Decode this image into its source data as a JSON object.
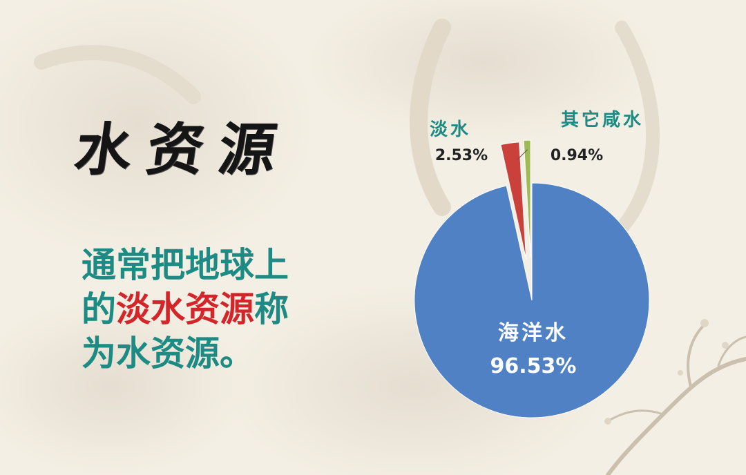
{
  "slide": {
    "title": "水资源",
    "description": {
      "line1": "通常把地球上",
      "line2_prefix": "的",
      "line2_highlight": "淡水资源",
      "line2_suffix": "称",
      "line3": "为水资源。"
    }
  },
  "colors": {
    "teal_text": "#1d8a84",
    "red_text": "#d2262a",
    "title_text": "#151515",
    "background": "#f4efe4"
  },
  "chart_data": {
    "type": "pie",
    "title": "",
    "slices": [
      {
        "name": "海洋水",
        "value": 96.53,
        "label": "96.53%",
        "color": "#4f81c4",
        "exploded": false
      },
      {
        "name": "淡水",
        "value": 2.53,
        "label": "2.53%",
        "color": "#c9413a",
        "exploded": true
      },
      {
        "name": "其它咸水",
        "value": 0.94,
        "label": "0.94%",
        "color": "#9fbb57",
        "exploded": true
      }
    ],
    "start_angle_deg": 0,
    "direction": "clockwise",
    "label_colors": {
      "name": "#1d8a84",
      "value": "#222222",
      "inside": "#ffffff"
    },
    "legend": "none"
  }
}
